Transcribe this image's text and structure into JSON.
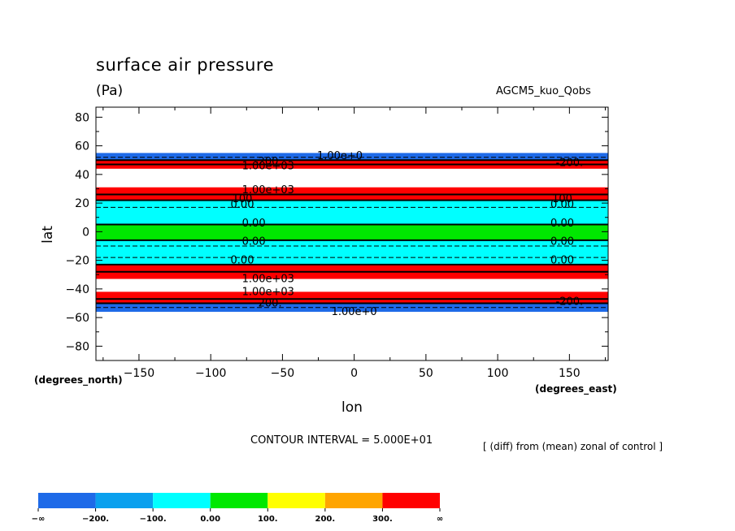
{
  "title": "surface air pressure",
  "units": "(Pa)",
  "run_label": "AGCM5_kuo_Qobs",
  "contour_interval": "CONTOUR INTERVAL = 5.000E+01",
  "diff_note": "[ (diff) from (mean) zonal of control ]",
  "chart_data": {
    "type": "heatmap",
    "title": "surface air pressure",
    "units": "(Pa)",
    "xlabel": "lon",
    "ylabel": "lat",
    "xunits": "(degrees_east)",
    "yunits": "(degrees_north)",
    "xlim": [
      -180,
      177
    ],
    "ylim": [
      -90,
      87
    ],
    "xticks": [
      -150,
      -100,
      -50,
      0,
      50,
      100,
      150
    ],
    "xtick_labels": [
      "−150",
      "−100",
      "−50",
      "0",
      "50",
      "100",
      "150"
    ],
    "yticks": [
      80,
      60,
      40,
      20,
      0,
      -20,
      -40,
      -60,
      -80
    ],
    "ytick_labels": [
      "80",
      "60",
      "40",
      "20",
      "0",
      "−20",
      "−40",
      "−60",
      "−80"
    ],
    "bands": [
      {
        "lat_min": 50,
        "lat_max": 55,
        "category": "lt_-200"
      },
      {
        "lat_min": 47,
        "lat_max": 50,
        "category": "ge_300"
      },
      {
        "lat_min": 44,
        "lat_max": 47,
        "category": "ge_300"
      },
      {
        "lat_min": 26,
        "lat_max": 31,
        "category": "ge_300"
      },
      {
        "lat_min": 22,
        "lat_max": 26,
        "category": "ge_300"
      },
      {
        "lat_min": 17,
        "lat_max": 22,
        "category": "-100_0"
      },
      {
        "lat_min": 5,
        "lat_max": 17,
        "category": "-100_0"
      },
      {
        "lat_min": -6,
        "lat_max": 5,
        "category": "0_100"
      },
      {
        "lat_min": -18,
        "lat_max": -6,
        "category": "-100_0"
      },
      {
        "lat_min": -23,
        "lat_max": -18,
        "category": "-100_0"
      },
      {
        "lat_min": -28,
        "lat_max": -23,
        "category": "ge_300"
      },
      {
        "lat_min": -33,
        "lat_max": -28,
        "category": "ge_300"
      },
      {
        "lat_min": -47,
        "lat_max": -42,
        "category": "ge_300"
      },
      {
        "lat_min": -50,
        "lat_max": -47,
        "category": "ge_300"
      },
      {
        "lat_min": -56,
        "lat_max": -50,
        "category": "lt_-200"
      }
    ],
    "contour_lines": [
      {
        "lat": 52,
        "style": "dashed"
      },
      {
        "lat": 50,
        "style": "solid"
      },
      {
        "lat": 47,
        "style": "solid"
      },
      {
        "lat": 26,
        "style": "solid"
      },
      {
        "lat": 22,
        "style": "solid"
      },
      {
        "lat": 17,
        "style": "dashed"
      },
      {
        "lat": 5,
        "style": "solid"
      },
      {
        "lat": -6,
        "style": "solid"
      },
      {
        "lat": -10,
        "style": "dashed"
      },
      {
        "lat": -18,
        "style": "dashed"
      },
      {
        "lat": -23,
        "style": "solid"
      },
      {
        "lat": -28,
        "style": "solid"
      },
      {
        "lat": -47,
        "style": "solid"
      },
      {
        "lat": -50,
        "style": "solid"
      },
      {
        "lat": -53,
        "style": "dashed"
      }
    ],
    "contour_labels": [
      {
        "lon": -60,
        "lat": 49,
        "text": "-200."
      },
      {
        "lon": -10,
        "lat": 53,
        "text": "1.00e+0"
      },
      {
        "lon": -60,
        "lat": 46,
        "text": "1.00e+03"
      },
      {
        "lon": 150,
        "lat": 48,
        "text": "-200."
      },
      {
        "lon": -60,
        "lat": 29,
        "text": "1.00e+03"
      },
      {
        "lon": -78,
        "lat": 23,
        "text": "100"
      },
      {
        "lon": -78,
        "lat": 19,
        "text": "0.00"
      },
      {
        "lon": 145,
        "lat": 23,
        "text": "100"
      },
      {
        "lon": 145,
        "lat": 19,
        "text": "0.00"
      },
      {
        "lon": -70,
        "lat": 6,
        "text": "0.00"
      },
      {
        "lon": 145,
        "lat": 6,
        "text": "0.00"
      },
      {
        "lon": -70,
        "lat": -7,
        "text": "0.00"
      },
      {
        "lon": 145,
        "lat": -7,
        "text": "0.00"
      },
      {
        "lon": -78,
        "lat": -20,
        "text": "0.00"
      },
      {
        "lon": 145,
        "lat": -20,
        "text": "0.00"
      },
      {
        "lon": -60,
        "lat": -33,
        "text": "1.00e+03"
      },
      {
        "lon": -60,
        "lat": -42,
        "text": "1.00e+03"
      },
      {
        "lon": -60,
        "lat": -50,
        "text": "-200."
      },
      {
        "lon": 0,
        "lat": -56,
        "text": "1.00e+0"
      },
      {
        "lon": 150,
        "lat": -49,
        "text": "-200."
      }
    ],
    "colorbar": {
      "boundaries": [
        "−∞",
        "−200.",
        "−100.",
        "0.00",
        "100.",
        "200.",
        "300.",
        "∞"
      ],
      "colors": [
        "#1e6ae8",
        "#0aa0ee",
        "#00ffff",
        "#00e800",
        "#ffff00",
        "#ffa500",
        "#ff0000"
      ]
    },
    "category_colors": {
      "lt_-200": "#1e6ae8",
      "-200_-100": "#0aa0ee",
      "-100_0": "#00ffff",
      "0_100": "#00e800",
      "100_200": "#ffff00",
      "200_300": "#ffa500",
      "ge_300": "#ff0000"
    }
  }
}
